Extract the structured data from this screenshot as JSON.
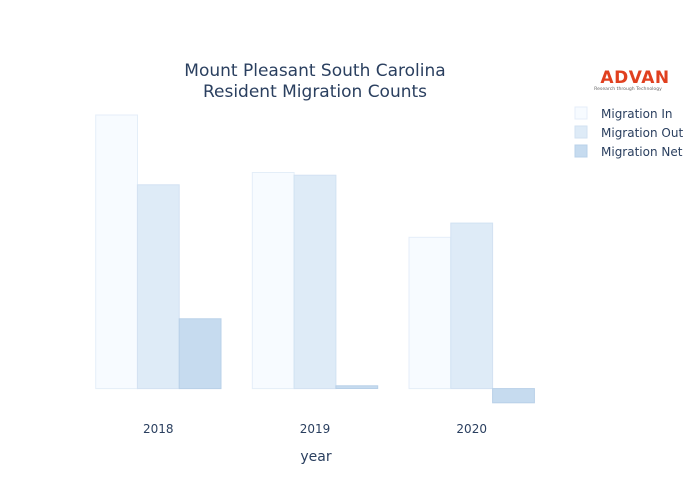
{
  "chart_data": {
    "type": "bar",
    "title_lines": [
      "Mount Pleasant South Carolina",
      "Resident Migration Counts"
    ],
    "xlabel": "year",
    "ylabel": "",
    "categories": [
      "2018",
      "2019",
      "2020"
    ],
    "series": [
      {
        "name": "Migration In",
        "values": [
          1000,
          790,
          553
        ],
        "color": "#f7fbff",
        "stroke": "#e4eef8"
      },
      {
        "name": "Migration Out",
        "values": [
          745,
          780,
          605
        ],
        "color": "#deebf7",
        "stroke": "#d2e2f2"
      },
      {
        "name": "Migration Net",
        "values": [
          255,
          10,
          -52
        ],
        "color": "#c6dbef",
        "stroke": "#b8d0e8"
      }
    ],
    "ylim": [
      -60,
      1000
    ],
    "grid": false,
    "yticks_shown": false,
    "legend_position": "top-right"
  },
  "logo": {
    "name": "ADVAN",
    "tagline": "Research through Technology",
    "color": "#e0401f"
  }
}
